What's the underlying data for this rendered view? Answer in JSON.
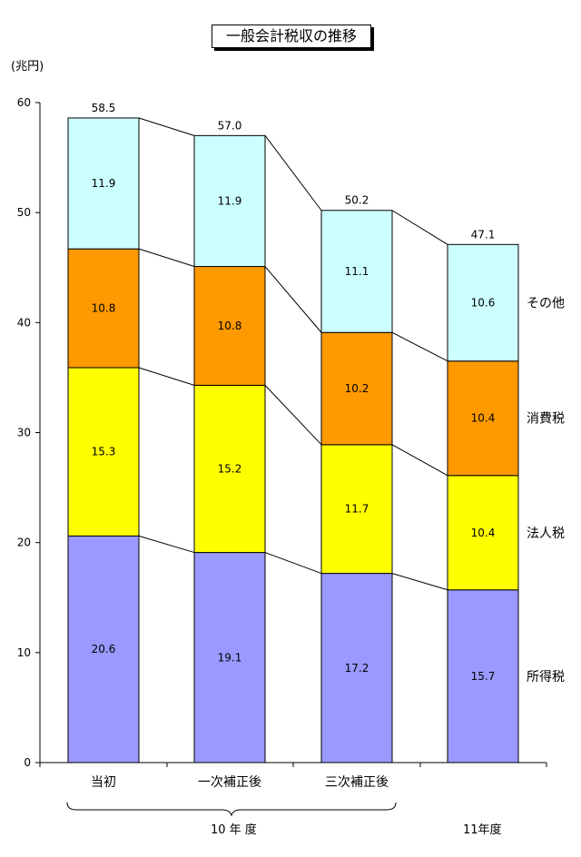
{
  "chart_data": {
    "type": "bar",
    "stacked": true,
    "title": "一般会計税収の推移",
    "ylabel": "(兆円)",
    "ylim": [
      0,
      60
    ],
    "yticks": [
      0,
      10,
      20,
      30,
      40,
      50,
      60
    ],
    "grid": false,
    "legend": "right-inline",
    "categories": [
      "当初",
      "一次補正後",
      "三次補正後",
      ""
    ],
    "group_labels": [
      {
        "label": "10 年 度",
        "categories": [
          0,
          1,
          2
        ]
      },
      {
        "label": "11年度",
        "categories": [
          3
        ]
      }
    ],
    "totals": [
      "58.5",
      "57.0",
      "50.2",
      "47.1"
    ],
    "series": [
      {
        "name": "所得税",
        "color": "#9999ff",
        "values": [
          20.6,
          19.1,
          17.2,
          15.7
        ],
        "labels": [
          "20.6",
          "19.1",
          "17.2",
          "15.7"
        ]
      },
      {
        "name": "法人税",
        "color": "#ffff00",
        "values": [
          15.3,
          15.2,
          11.7,
          10.4
        ],
        "labels": [
          "15.3",
          "15.2",
          "11.7",
          "10.4"
        ]
      },
      {
        "name": "消費税",
        "color": "#ff9900",
        "values": [
          10.8,
          10.8,
          10.2,
          10.4
        ],
        "labels": [
          "10.8",
          "10.8",
          "10.2",
          "10.4"
        ]
      },
      {
        "name": "その他",
        "color": "#ccffff",
        "values": [
          11.9,
          11.9,
          11.1,
          10.6
        ],
        "labels": [
          "11.9",
          "11.9",
          "11.1",
          "10.6"
        ]
      }
    ]
  }
}
